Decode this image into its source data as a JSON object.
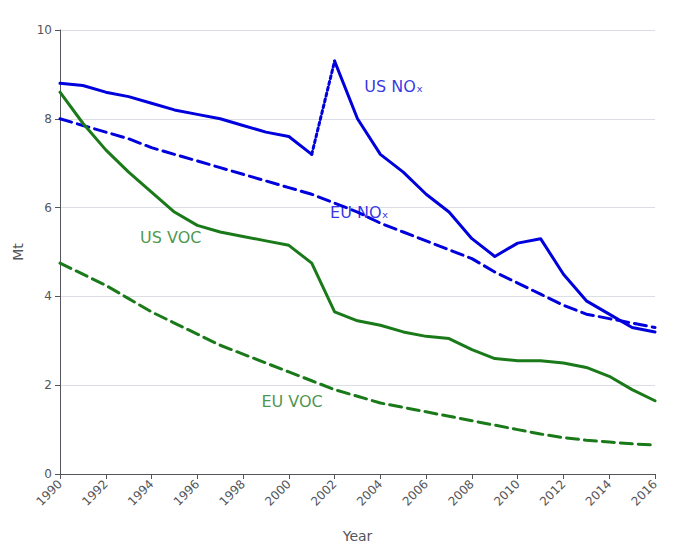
{
  "chart_data": {
    "type": "line",
    "xlabel": "Year",
    "ylabel": "Mt",
    "xlim": [
      1990,
      2016
    ],
    "ylim": [
      0,
      10
    ],
    "xticks": [
      1990,
      1992,
      1994,
      1996,
      1998,
      2000,
      2002,
      2004,
      2006,
      2008,
      2010,
      2012,
      2014,
      2016
    ],
    "yticks": [
      0,
      2,
      4,
      6,
      8,
      10
    ],
    "grid": true,
    "series": [
      {
        "name": "US NOₓ",
        "color": "#0000dd",
        "line_style": "solid",
        "x": [
          1990,
          1991,
          1992,
          1993,
          1994,
          1995,
          1996,
          1997,
          1998,
          1999,
          2000,
          2001
        ],
        "values": [
          8.8,
          8.75,
          8.6,
          8.5,
          8.35,
          8.2,
          8.1,
          8.0,
          7.85,
          7.7,
          7.6,
          7.2
        ]
      },
      {
        "name": "US NOₓ",
        "color": "#0000dd",
        "line_style": "dotted",
        "x": [
          2001,
          2002
        ],
        "values": [
          7.2,
          9.3
        ]
      },
      {
        "name": "US NOₓ",
        "color": "#0000dd",
        "line_style": "solid",
        "x": [
          2002,
          2003,
          2004,
          2005,
          2006,
          2007,
          2008,
          2009,
          2010,
          2011,
          2012,
          2013,
          2014,
          2015,
          2016
        ],
        "values": [
          9.3,
          8.0,
          7.2,
          6.8,
          6.3,
          5.9,
          5.3,
          4.9,
          5.2,
          5.3,
          4.5,
          3.9,
          3.6,
          3.3,
          3.2
        ]
      },
      {
        "name": "EU NOₓ",
        "color": "#0000dd",
        "line_style": "dashed",
        "x": [
          1990,
          1991,
          1992,
          1993,
          1994,
          1995,
          1996,
          1997,
          1998,
          1999,
          2000,
          2001,
          2002,
          2003,
          2004,
          2005,
          2006,
          2007,
          2008,
          2009,
          2010,
          2011,
          2012,
          2013,
          2014,
          2015,
          2016
        ],
        "values": [
          8.0,
          7.85,
          7.7,
          7.55,
          7.35,
          7.2,
          7.05,
          6.9,
          6.75,
          6.6,
          6.45,
          6.3,
          6.1,
          5.9,
          5.65,
          5.45,
          5.25,
          5.05,
          4.85,
          4.55,
          4.3,
          4.05,
          3.8,
          3.6,
          3.5,
          3.4,
          3.3
        ]
      },
      {
        "name": "US VOC",
        "color": "#1a7a1a",
        "line_style": "solid",
        "x": [
          1990,
          1991,
          1992,
          1993,
          1994,
          1995,
          1996,
          1997,
          1998,
          1999,
          2000,
          2001,
          2002,
          2003,
          2004,
          2005,
          2006,
          2007,
          2008,
          2009,
          2010,
          2011,
          2012,
          2013,
          2014,
          2015,
          2016
        ],
        "values": [
          8.6,
          7.9,
          7.3,
          6.8,
          6.35,
          5.9,
          5.6,
          5.45,
          5.35,
          5.25,
          5.15,
          4.75,
          3.65,
          3.45,
          3.35,
          3.2,
          3.1,
          3.05,
          2.8,
          2.6,
          2.55,
          2.55,
          2.5,
          2.4,
          2.2,
          1.9,
          1.65
        ]
      },
      {
        "name": "EU VOC",
        "color": "#1a7a1a",
        "line_style": "dashed",
        "x": [
          1990,
          1991,
          1992,
          1993,
          1994,
          1995,
          1996,
          1997,
          1998,
          1999,
          2000,
          2001,
          2002,
          2003,
          2004,
          2005,
          2006,
          2007,
          2008,
          2009,
          2010,
          2011,
          2012,
          2013,
          2014,
          2015,
          2016
        ],
        "values": [
          4.75,
          4.5,
          4.25,
          3.95,
          3.65,
          3.4,
          3.15,
          2.9,
          2.7,
          2.5,
          2.3,
          2.1,
          1.9,
          1.75,
          1.6,
          1.5,
          1.4,
          1.3,
          1.2,
          1.1,
          1.0,
          0.9,
          0.82,
          0.76,
          0.72,
          0.68,
          0.65
        ]
      }
    ],
    "annotations": [
      {
        "text": "US NOₓ",
        "x": 2003.3,
        "y": 8.55,
        "color": "#0000dd"
      },
      {
        "text": "EU NOₓ",
        "x": 2001.8,
        "y": 5.7,
        "color": "#0000dd"
      },
      {
        "text": "US VOC",
        "x": 1993.5,
        "y": 5.15,
        "color": "#1a7a1a"
      },
      {
        "text": "EU VOC",
        "x": 1998.8,
        "y": 1.45,
        "color": "#1a7a1a"
      }
    ]
  }
}
